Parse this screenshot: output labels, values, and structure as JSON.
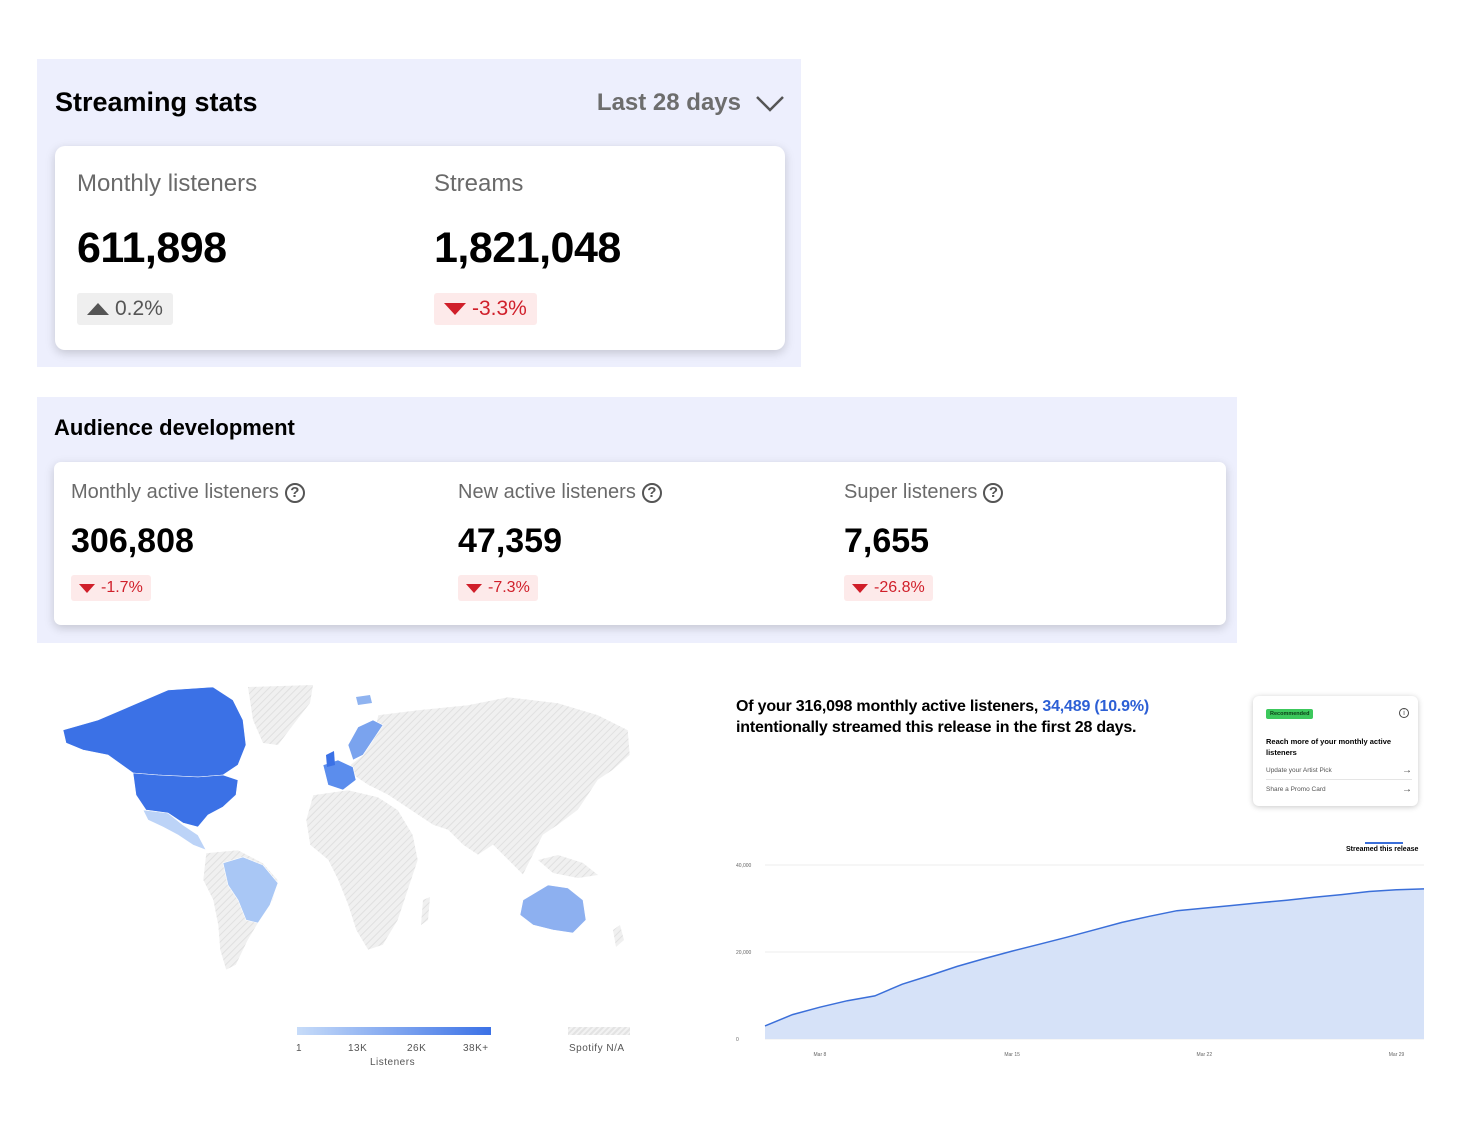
{
  "streaming_stats": {
    "title": "Streaming stats",
    "period": "Last 28 days",
    "metrics": [
      {
        "label": "Monthly listeners",
        "value": "611,898",
        "change": "0.2%",
        "direction": "up"
      },
      {
        "label": "Streams",
        "value": "1,821,048",
        "change": "-3.3%",
        "direction": "down"
      }
    ]
  },
  "audience_development": {
    "title": "Audience development",
    "metrics": [
      {
        "label": "Monthly active listeners",
        "value": "306,808",
        "change": "-1.7%",
        "direction": "down"
      },
      {
        "label": "New active listeners",
        "value": "47,359",
        "change": "-7.3%",
        "direction": "down"
      },
      {
        "label": "Super listeners",
        "value": "7,655",
        "change": "-26.8%",
        "direction": "down"
      }
    ]
  },
  "map_legend": {
    "ticks": [
      "1",
      "13K",
      "26K",
      "38K+"
    ],
    "title": "Listeners",
    "na_label": "Spotify N/A"
  },
  "release": {
    "headline_prefix": "Of your 316,098 monthly active listeners,",
    "headline_highlight": "34,489 (10.9%)",
    "headline_suffix": "intentionally streamed this release in the first 28 days.",
    "recommendation": {
      "tag": "Recommended",
      "title": "Reach more of your monthly active listeners",
      "links": [
        "Update your Artist Pick",
        "Share a Promo Card"
      ]
    },
    "series_name": "Streamed this release"
  },
  "colors": {
    "accent_blue": "#2c5fd5",
    "negative_red": "#d01f2a",
    "panel_bg": "#edeffd",
    "map_high": "#3b71e6",
    "map_low": "#c7dcf9"
  },
  "chart_data": {
    "type": "area",
    "x": [
      "Mar 6",
      "Mar 7",
      "Mar 8",
      "Mar 9",
      "Mar 10",
      "Mar 11",
      "Mar 12",
      "Mar 13",
      "Mar 14",
      "Mar 15",
      "Mar 16",
      "Mar 17",
      "Mar 18",
      "Mar 19",
      "Mar 20",
      "Mar 21",
      "Mar 22",
      "Mar 23",
      "Mar 24",
      "Mar 25",
      "Mar 26",
      "Mar 27",
      "Mar 28",
      "Mar 29",
      "Mar 30"
    ],
    "x_ticks": [
      "Mar 8",
      "Mar 15",
      "Mar 22",
      "Mar 29"
    ],
    "series": [
      {
        "name": "Streamed this release",
        "values": [
          3000,
          5600,
          7300,
          8800,
          9900,
          12600,
          14600,
          16700,
          18500,
          20200,
          21800,
          23400,
          25100,
          26800,
          28200,
          29500,
          30100,
          30700,
          31300,
          31900,
          32600,
          33200,
          33900,
          34300,
          34500
        ]
      }
    ],
    "y_ticks": [
      0,
      20000,
      40000
    ],
    "y_tick_labels": [
      "0",
      "20,000",
      "40,000"
    ],
    "ylim": [
      0,
      40000
    ],
    "grid": true,
    "legend": "top-right"
  }
}
